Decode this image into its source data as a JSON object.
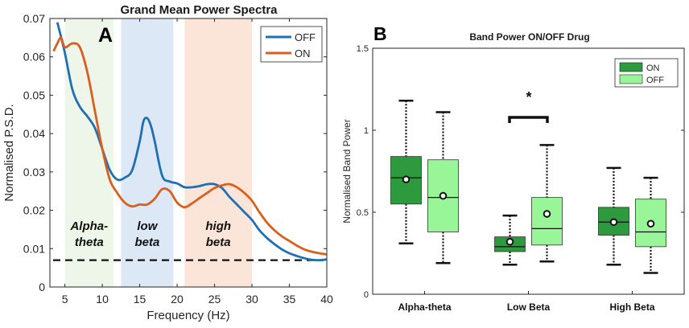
{
  "chart_data": [
    {
      "panel_label": "A",
      "type": "line",
      "title": "Grand Mean Power Spectra",
      "xlabel": "Frequency (Hz)",
      "ylabel": "Normalised P.S.D.",
      "xlim": [
        3,
        40
      ],
      "ylim": [
        0,
        0.07
      ],
      "xticks": [
        5,
        10,
        15,
        20,
        25,
        30,
        35,
        40
      ],
      "yticks": [
        0,
        0.01,
        0.02,
        0.03,
        0.04,
        0.05,
        0.06,
        0.07
      ],
      "ytick_labels": [
        "0",
        "0.01",
        "0.02",
        "0.03",
        "0.04",
        "0.05",
        "0.06",
        "0.07"
      ],
      "bands": [
        {
          "label_line1": "Alpha-",
          "label_line2": "theta",
          "from": 5,
          "to": 11.5,
          "color": "#eef5e9"
        },
        {
          "label_line1": "low",
          "label_line2": "beta",
          "from": 12.5,
          "to": 19.5,
          "color": "#dce8f6"
        },
        {
          "label_line1": "high",
          "label_line2": "beta",
          "from": 21,
          "to": 30,
          "color": "#fbe5d9"
        }
      ],
      "threshold": {
        "y": 0.007,
        "style": "dashed"
      },
      "legend": {
        "position": "top-right"
      },
      "series": [
        {
          "name": "OFF",
          "color": "#1f6fb5",
          "x": [
            4,
            5,
            6,
            7,
            8,
            9,
            10,
            11,
            12,
            13,
            14,
            15,
            15.5,
            16,
            16.5,
            17,
            18,
            19,
            20,
            21,
            22,
            23,
            24,
            25,
            26,
            27,
            28,
            29,
            30,
            31,
            32,
            33,
            34,
            35,
            36,
            37,
            38,
            39,
            40
          ],
          "y": [
            0.069,
            0.061,
            0.0515,
            0.047,
            0.0445,
            0.0415,
            0.036,
            0.0305,
            0.028,
            0.0285,
            0.0305,
            0.038,
            0.0432,
            0.044,
            0.042,
            0.038,
            0.029,
            0.0275,
            0.027,
            0.026,
            0.026,
            0.0263,
            0.0268,
            0.0268,
            0.0258,
            0.0235,
            0.0215,
            0.0195,
            0.0175,
            0.0148,
            0.0128,
            0.0112,
            0.0098,
            0.0088,
            0.0081,
            0.0075,
            0.0071,
            0.007,
            0.0072
          ]
        },
        {
          "name": "ON",
          "color": "#d95f1f",
          "x": [
            3.5,
            4,
            4.5,
            5,
            6,
            7,
            8,
            9,
            10,
            11,
            12,
            13,
            14,
            15,
            16,
            17,
            18,
            19,
            20,
            21,
            22,
            23,
            24,
            25,
            26,
            27,
            28,
            29,
            30,
            31,
            32,
            33,
            34,
            35,
            36,
            37,
            38,
            39,
            40
          ],
          "y": [
            0.0615,
            0.0635,
            0.065,
            0.0625,
            0.0635,
            0.0625,
            0.056,
            0.046,
            0.036,
            0.028,
            0.0245,
            0.022,
            0.021,
            0.0215,
            0.0215,
            0.023,
            0.0255,
            0.025,
            0.022,
            0.0208,
            0.0218,
            0.0232,
            0.0245,
            0.0258,
            0.0265,
            0.0268,
            0.026,
            0.0245,
            0.0225,
            0.0195,
            0.0168,
            0.0148,
            0.0132,
            0.012,
            0.0108,
            0.0098,
            0.0092,
            0.0088,
            0.0085
          ]
        }
      ]
    },
    {
      "panel_label": "B",
      "type": "box",
      "title": "Band Power ON/OFF Drug",
      "xlabel": "",
      "ylabel": "Normalised Band Power",
      "ylim": [
        0,
        1.5
      ],
      "yticks": [
        0,
        0.5,
        1,
        1.5
      ],
      "ytick_labels": [
        "0",
        "0.5",
        "1",
        "1.5"
      ],
      "categories": [
        "Alpha-theta",
        "Low Beta",
        "High Beta"
      ],
      "legend": {
        "position": "top-right"
      },
      "series": [
        {
          "name": "ON",
          "color": "#2e9a3e",
          "boxes": [
            {
              "whisker_low": 0.31,
              "q1": 0.55,
              "median": 0.71,
              "q3": 0.84,
              "whisker_high": 1.18,
              "mean": 0.7
            },
            {
              "whisker_low": 0.18,
              "q1": 0.26,
              "median": 0.29,
              "q3": 0.35,
              "whisker_high": 0.48,
              "mean": 0.32
            },
            {
              "whisker_low": 0.18,
              "q1": 0.36,
              "median": 0.44,
              "q3": 0.53,
              "whisker_high": 0.77,
              "mean": 0.44
            }
          ]
        },
        {
          "name": "OFF",
          "color": "#98f598",
          "boxes": [
            {
              "whisker_low": 0.19,
              "q1": 0.38,
              "median": 0.59,
              "q3": 0.82,
              "whisker_high": 1.11,
              "mean": 0.6
            },
            {
              "whisker_low": 0.2,
              "q1": 0.3,
              "median": 0.4,
              "q3": 0.59,
              "whisker_high": 0.91,
              "mean": 0.49
            },
            {
              "whisker_low": 0.13,
              "q1": 0.29,
              "median": 0.38,
              "q3": 0.58,
              "whisker_high": 0.71,
              "mean": 0.43
            }
          ]
        }
      ],
      "significance": {
        "category": "Low Beta",
        "marker": "*"
      }
    }
  ]
}
